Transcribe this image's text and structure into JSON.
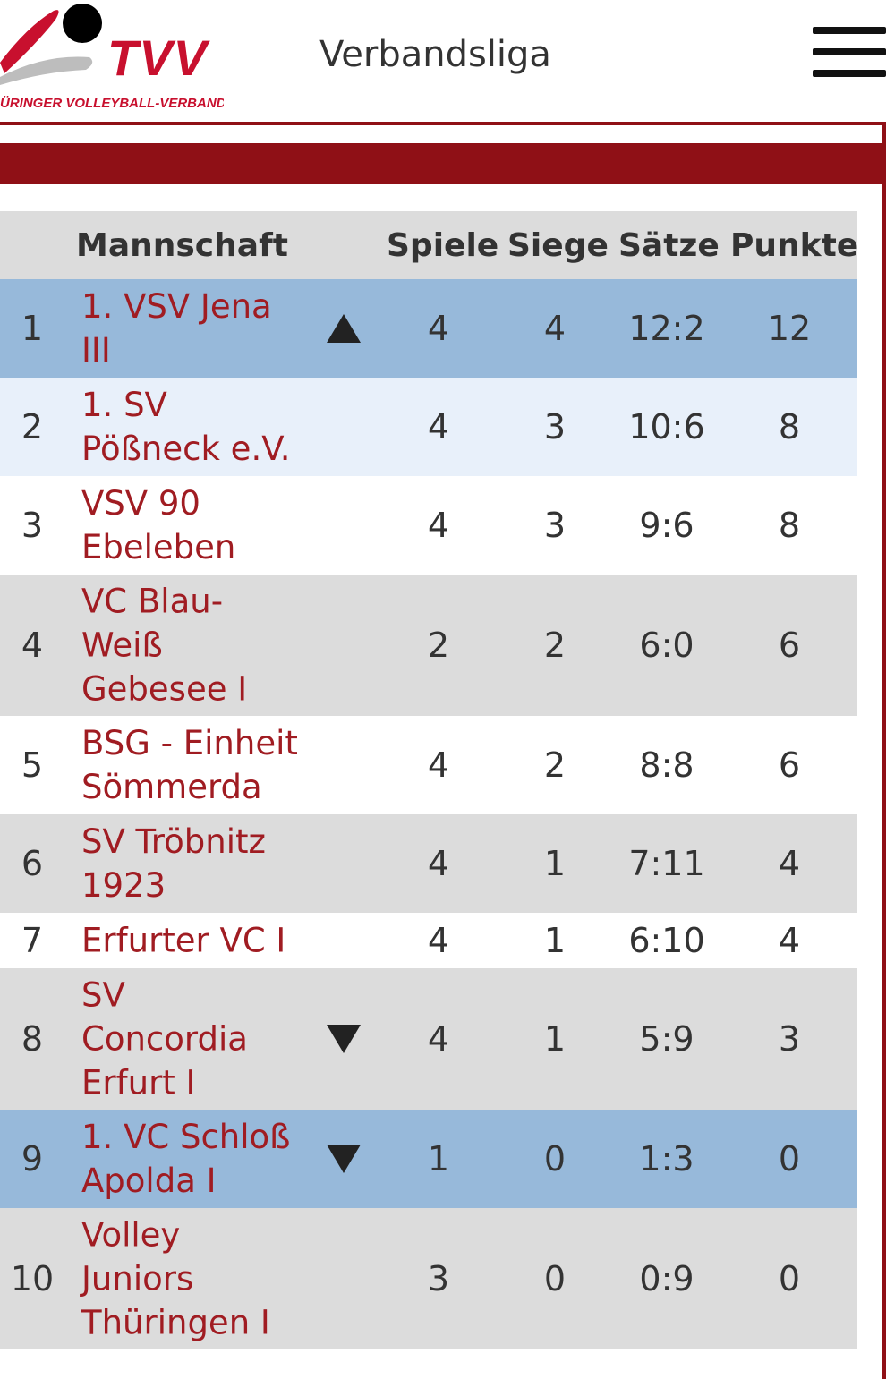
{
  "header": {
    "logo_text": "TVV",
    "logo_subtitle": "ÜRINGER VOLLEYBALL-VERBAND",
    "title": "Verbandsliga",
    "colors": {
      "brand": "#c8102e",
      "bar": "#8f1016"
    }
  },
  "table": {
    "headers": {
      "team": "Mannschaft",
      "games": "Spiele",
      "wins": "Siege",
      "sets": "Sätze",
      "points": "Punkte"
    },
    "rows": [
      {
        "rank": "1",
        "team": "1. VSV Jena\nIII",
        "trend": "up",
        "games": "4",
        "wins": "4",
        "sets": "12:2",
        "points": "12",
        "style": "hl",
        "height": 110
      },
      {
        "rank": "2",
        "team": "1. SV\nPößneck e.V.",
        "trend": "",
        "games": "4",
        "wins": "3",
        "sets": "10:6",
        "points": "8",
        "style": "light",
        "height": 110
      },
      {
        "rank": "3",
        "team": "VSV 90\nEbeleben",
        "trend": "",
        "games": "4",
        "wins": "3",
        "sets": "9:6",
        "points": "8",
        "style": "white",
        "height": 110
      },
      {
        "rank": "4",
        "team": "VC Blau-\nWeiß\nGebesee I",
        "trend": "",
        "games": "2",
        "wins": "2",
        "sets": "6:0",
        "points": "6",
        "style": "gray",
        "height": 158
      },
      {
        "rank": "5",
        "team": "BSG - Einheit\nSömmerda",
        "trend": "",
        "games": "4",
        "wins": "2",
        "sets": "8:8",
        "points": "6",
        "style": "white",
        "height": 110
      },
      {
        "rank": "6",
        "team": "SV Tröbnitz\n1923",
        "trend": "",
        "games": "4",
        "wins": "1",
        "sets": "7:11",
        "points": "4",
        "style": "gray",
        "height": 110
      },
      {
        "rank": "7",
        "team": "Erfurter VC I",
        "trend": "",
        "games": "4",
        "wins": "1",
        "sets": "6:10",
        "points": "4",
        "style": "white",
        "height": 62
      },
      {
        "rank": "8",
        "team": "SV\nConcordia\nErfurt I",
        "trend": "down",
        "games": "4",
        "wins": "1",
        "sets": "5:9",
        "points": "3",
        "style": "gray",
        "height": 158
      },
      {
        "rank": "9",
        "team": "1. VC Schloß\nApolda I",
        "trend": "down",
        "games": "1",
        "wins": "0",
        "sets": "1:3",
        "points": "0",
        "style": "hl",
        "height": 110
      },
      {
        "rank": "10",
        "team": "Volley\nJuniors\nThüringen I",
        "trend": "",
        "games": "3",
        "wins": "0",
        "sets": "0:9",
        "points": "0",
        "style": "gray",
        "height": 158
      }
    ]
  }
}
